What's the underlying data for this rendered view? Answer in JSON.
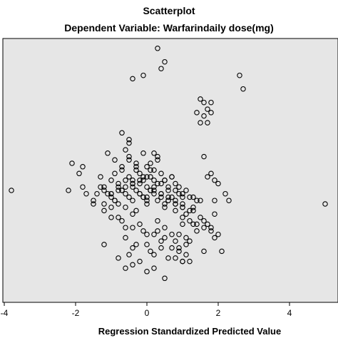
{
  "chart_data": {
    "type": "scatter",
    "title": "Scatterplot",
    "subtitle": "Dependent Variable: Warfarindaily dose(mg)",
    "xlabel": "Regression Standardized Predicted Value",
    "ylabel": "",
    "xlim": [
      -4,
      5
    ],
    "ylim": [
      -3.4,
      4.4
    ],
    "x_ticks": [
      "-4",
      "-2",
      "0",
      "2",
      "4"
    ],
    "grid": false,
    "plot_background": "#e6e6e6",
    "marker_color": "#000000",
    "series": [
      {
        "x": [
          -3.8,
          -2.2,
          -2.1,
          -1.9,
          -1.8,
          -1.8,
          -1.7,
          -1.5,
          -1.4,
          -1.3,
          -1.2,
          -1.2,
          -1.1,
          -1.0,
          -1.0,
          -0.9,
          -0.9,
          -0.8,
          -0.8,
          -0.7,
          -0.7,
          -0.6,
          -0.6,
          -0.5,
          -0.5,
          -0.4,
          -0.4,
          -0.3,
          -0.3,
          -0.2,
          -0.2,
          -0.1,
          -0.1,
          0.0,
          0.0,
          0.1,
          0.1,
          0.2,
          0.2,
          0.3,
          0.3,
          0.4,
          0.4,
          0.5,
          0.5,
          0.6,
          0.6,
          0.7,
          0.7,
          0.8,
          0.8,
          0.9,
          1.0,
          1.0,
          1.1,
          1.2,
          1.3,
          1.4,
          1.5,
          1.6,
          1.7,
          1.8,
          1.9,
          2.0,
          2.2,
          -0.6,
          -0.5,
          -0.3,
          -0.1,
          0.1,
          0.3,
          -1.3,
          -1.2,
          -1.1,
          -1.0,
          -0.9,
          -0.8,
          -0.7,
          -0.6,
          -0.5,
          -0.4,
          -0.3,
          -0.2,
          -0.1,
          0.0,
          0.1,
          0.2,
          0.4,
          0.6,
          0.8,
          1.0,
          1.2,
          -0.4,
          -0.2,
          0.0,
          0.2,
          0.4,
          0.6,
          0.8,
          1.0,
          -1.0,
          -0.8,
          -0.6,
          -0.4,
          -0.2,
          0.0,
          0.2,
          0.4,
          0.6,
          0.8,
          1.0,
          1.2,
          1.4,
          -0.9,
          -0.7,
          -0.5,
          -0.3,
          -0.1,
          0.1,
          0.3,
          0.5,
          0.7,
          0.9,
          1.1,
          1.3,
          1.5,
          -0.5,
          -0.7,
          0.2,
          0.5,
          -0.4,
          0.8,
          1.0,
          1.3,
          1.6,
          1.8,
          2.0,
          -1.0,
          -0.8,
          -0.6,
          0.3,
          0.5,
          0.9,
          1.1,
          1.4,
          1.7,
          -0.6,
          -0.3,
          0.0,
          0.4,
          0.7,
          1.2,
          1.6,
          -0.5,
          0.1,
          0.8,
          1.2,
          -0.2,
          0.3,
          0.7,
          1.1,
          -0.4,
          0.0,
          0.4,
          0.9,
          0.9,
          1.1,
          1.0,
          -1.5,
          -1.2,
          -1.0,
          -0.7,
          -0.4,
          -0.1,
          0.2,
          0.5,
          0.8,
          5.0,
          1.5,
          1.6,
          1.7,
          1.6,
          1.8,
          1.7,
          1.8,
          1.5,
          1.4,
          1.6,
          1.0,
          2.7,
          2.6,
          1.9,
          1.8,
          1.9,
          2.1,
          0.3,
          0.4,
          0.5,
          -0.1,
          -0.4,
          0.0,
          1.0,
          1.3,
          1.9,
          2.3,
          0.6,
          0.2,
          0.5,
          -1.2,
          -0.8,
          -0.6,
          -0.4,
          -0.2,
          0.0,
          0.2
        ],
        "y": [
          -0.2,
          -0.2,
          0.6,
          0.3,
          0.5,
          -0.1,
          -0.3,
          -0.6,
          -0.3,
          0.2,
          -0.1,
          -0.6,
          0.9,
          0.1,
          -0.3,
          -0.5,
          0.7,
          0.0,
          -0.6,
          0.4,
          -0.2,
          0.1,
          -0.7,
          0.8,
          0.2,
          0.0,
          -0.5,
          0.6,
          -0.8,
          0.3,
          -0.3,
          0.1,
          -0.4,
          0.5,
          -0.6,
          0.2,
          -0.2,
          0.4,
          -0.1,
          0.0,
          -0.5,
          0.3,
          -0.3,
          0.1,
          -0.7,
          -0.2,
          -0.5,
          0.2,
          -0.4,
          0.0,
          -0.6,
          -0.3,
          -0.4,
          -0.7,
          -0.9,
          -1.1,
          -0.8,
          -1.2,
          -1.0,
          -1.1,
          0.2,
          0.3,
          0.1,
          0.0,
          -0.3,
          1.0,
          1.3,
          0.5,
          0.9,
          0.4,
          0.7,
          -0.1,
          -0.2,
          -0.3,
          -0.4,
          -0.5,
          -0.1,
          -0.2,
          -0.3,
          -0.4,
          -0.1,
          -0.2,
          -0.3,
          -0.4,
          -0.5,
          -0.2,
          -0.3,
          -0.4,
          -0.5,
          -0.6,
          -0.7,
          -0.8,
          0.1,
          0.0,
          -0.1,
          -0.2,
          -0.3,
          -0.4,
          -0.5,
          -0.6,
          -0.3,
          -0.2,
          -0.1,
          0.0,
          0.1,
          0.2,
          0.1,
          0.0,
          -0.1,
          -0.2,
          -0.3,
          -0.4,
          -0.5,
          0.3,
          0.5,
          0.7,
          0.4,
          0.2,
          0.6,
          0.8,
          0.1,
          0.2,
          -0.1,
          -0.2,
          -0.4,
          -0.5,
          1.2,
          1.5,
          0.9,
          -0.6,
          -0.9,
          -0.8,
          -1.0,
          -1.2,
          -1.3,
          -1.4,
          -1.5,
          -0.7,
          -1.0,
          -1.3,
          -1.1,
          -1.3,
          -1.5,
          -1.6,
          -1.4,
          -1.2,
          -1.6,
          -1.8,
          -1.5,
          -1.7,
          -1.9,
          -1.7,
          -2.0,
          -2.1,
          -2.0,
          -2.2,
          -2.3,
          -1.2,
          -1.4,
          -1.5,
          -1.8,
          -2.4,
          -1.8,
          -1.9,
          -2.0,
          -1.9,
          -2.1,
          -2.3,
          -0.5,
          -0.8,
          -1.0,
          -1.1,
          -1.3,
          -1.4,
          -1.5,
          -1.6,
          -1.7,
          -0.6,
          2.5,
          2.4,
          2.2,
          2.0,
          2.1,
          1.8,
          2.4,
          1.8,
          2.1,
          0.8,
          -2.3,
          2.8,
          3.2,
          -0.9,
          -1.3,
          -1.6,
          -2.0,
          4.0,
          3.4,
          3.6,
          3.2,
          3.1,
          -0.4,
          -1.2,
          -0.7,
          -0.5,
          -0.5,
          -2.2,
          -2.5,
          -2.8,
          -1.8,
          -2.2,
          -2.5,
          -1.9,
          -2.3,
          -2.6,
          -2.1
        ]
      }
    ]
  }
}
